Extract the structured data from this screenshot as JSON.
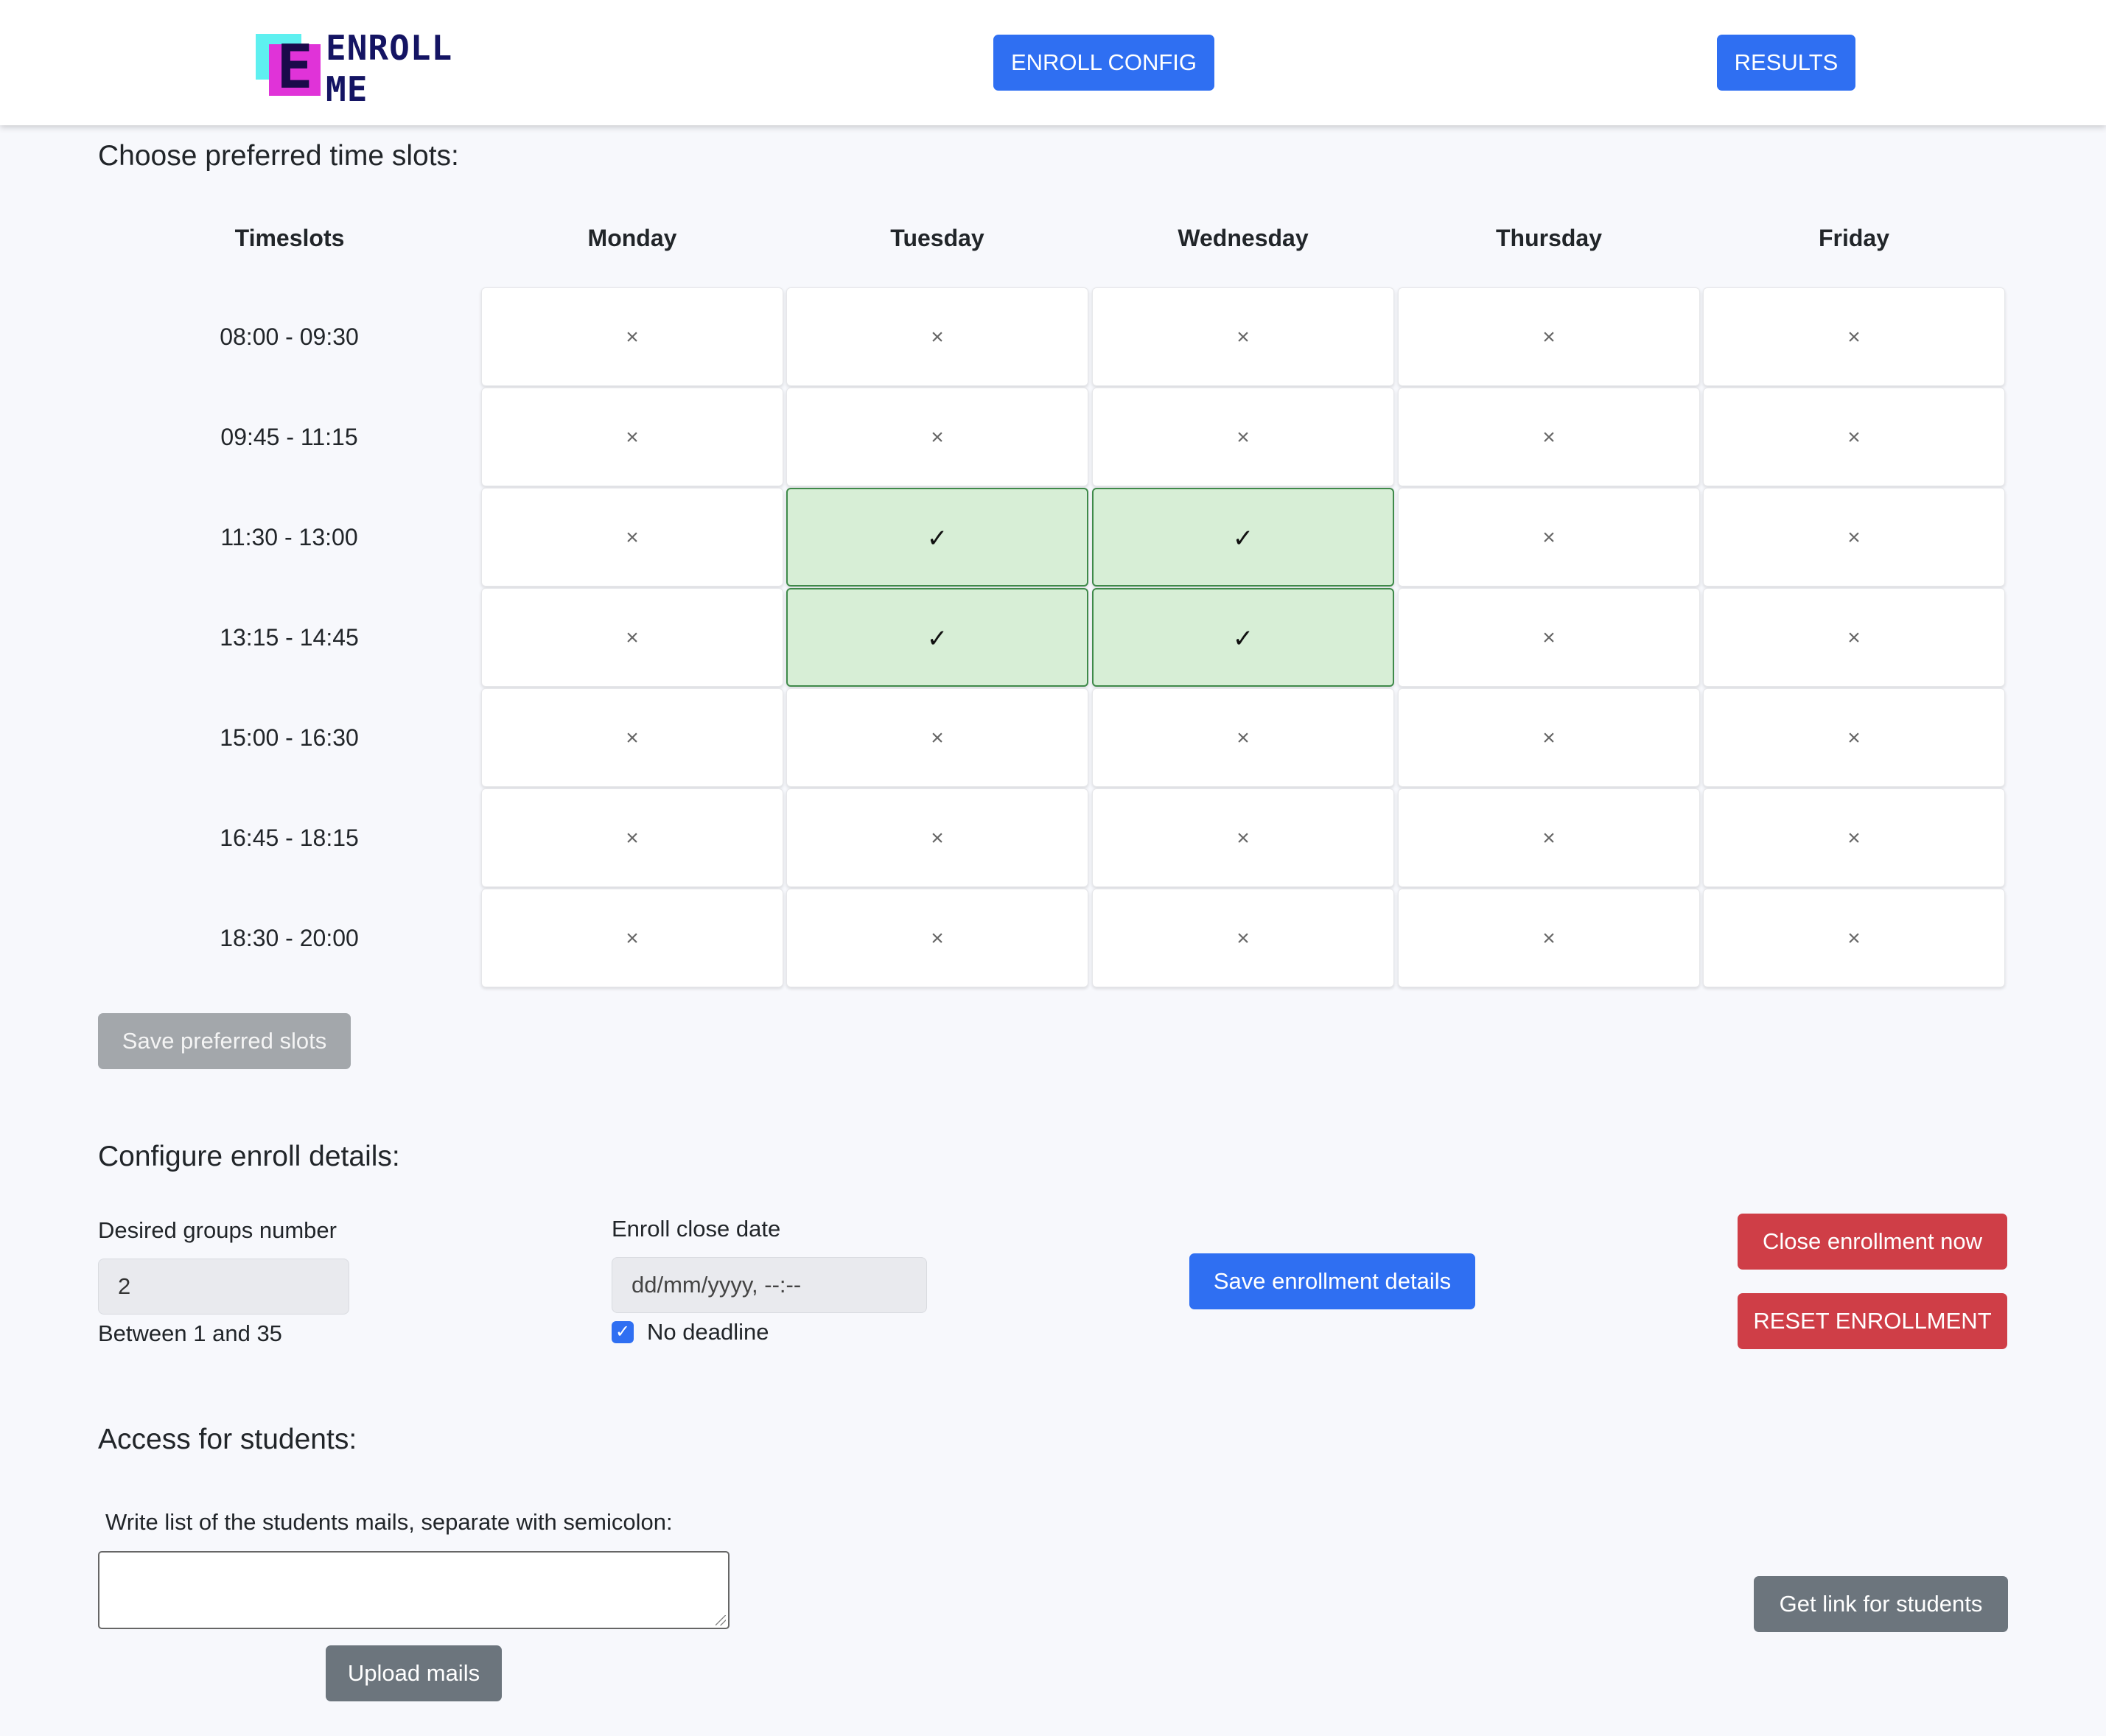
{
  "header": {
    "logo": {
      "letter": "E",
      "line1": "ENROLL",
      "line2": "ME"
    },
    "nav": {
      "config_label": "ENROLL CONFIG",
      "results_label": "RESULTS"
    }
  },
  "timeslots_section": {
    "title": "Choose preferred time slots:",
    "first_column_header": "Timeslots",
    "days": [
      "Monday",
      "Tuesday",
      "Wednesday",
      "Thursday",
      "Friday"
    ],
    "slots": [
      "08:00 - 09:30",
      "09:45 - 11:15",
      "11:30 - 13:00",
      "13:15 - 14:45",
      "15:00 - 16:30",
      "16:45 - 18:15",
      "18:30 - 20:00"
    ],
    "selected": [
      [
        2,
        1
      ],
      [
        2,
        2
      ],
      [
        3,
        1
      ],
      [
        3,
        2
      ]
    ],
    "selected_glyph": "✓",
    "unselected_glyph": "×",
    "selected_bg": "#d7eed6",
    "save_label": "Save preferred slots"
  },
  "enroll_details": {
    "title": "Configure enroll details:",
    "groups_label": "Desired groups number",
    "groups_value": "2",
    "groups_hint": "Between 1 and 35",
    "close_date_label": "Enroll close date",
    "close_date_placeholder": "dd/mm/yyyy, --:--",
    "no_deadline_label": "No deadline",
    "no_deadline_checked": true,
    "save_label": "Save enrollment details",
    "close_now_label": "Close enrollment now",
    "reset_label": "RESET ENROLLMENT"
  },
  "access": {
    "title": "Access for students:",
    "mails_label": "Write list of the students mails, separate with semicolon:",
    "mails_value": "",
    "upload_label": "Upload mails",
    "get_link_label": "Get link for students"
  },
  "colors": {
    "primary": "#2f6ff2",
    "danger": "#cf3e47",
    "secondary": "#6c757d",
    "disabled": "#a3a7ab",
    "background": "#f7f8fc"
  }
}
